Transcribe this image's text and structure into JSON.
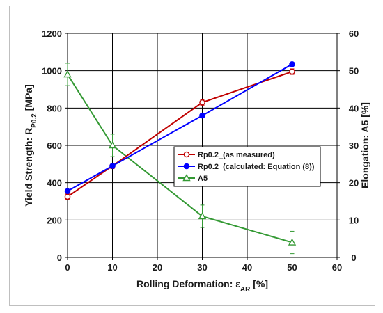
{
  "chart_data": {
    "type": "line",
    "xlabel_main": "Rolling Deformation: ε",
    "xlabel_sub": "AR",
    "xlabel_unit": " [%]",
    "ylabel_left_main": "Yield Strength: R",
    "ylabel_left_sub": "P0.2",
    "ylabel_left_unit": " [MPa]",
    "ylabel_right": "Elongation: A5 [%]",
    "xlim": [
      0,
      60
    ],
    "ylim_left": [
      0,
      1200
    ],
    "ylim_right": [
      0,
      60
    ],
    "x_ticks": [
      "0",
      "10",
      "20",
      "30",
      "40",
      "50",
      "60"
    ],
    "y_left_ticks": [
      "0",
      "200",
      "400",
      "600",
      "800",
      "1000",
      "1200"
    ],
    "y_right_ticks": [
      "0",
      "10",
      "20",
      "30",
      "40",
      "50",
      "60"
    ],
    "grid": true,
    "legend_position": "center-right",
    "series": [
      {
        "name": "Rp0.2_(as measured)",
        "axis": "left",
        "color": "#c00000",
        "marker": "open-circle",
        "x": [
          0,
          10,
          30,
          50
        ],
        "values": [
          325,
          490,
          830,
          995
        ],
        "error": [
          15,
          15,
          15,
          15
        ]
      },
      {
        "name": "Rp0.2_(calculated: Equation (8))",
        "axis": "left",
        "color": "#0000ff",
        "marker": "filled-circle",
        "x": [
          0,
          10,
          30,
          50
        ],
        "values": [
          355,
          490,
          760,
          1035
        ]
      },
      {
        "name": "A5",
        "axis": "right",
        "color": "#339933",
        "marker": "open-triangle",
        "x": [
          0,
          10,
          30,
          50
        ],
        "values": [
          49,
          30,
          11,
          4
        ],
        "error": [
          3,
          3,
          3,
          3
        ]
      }
    ]
  }
}
